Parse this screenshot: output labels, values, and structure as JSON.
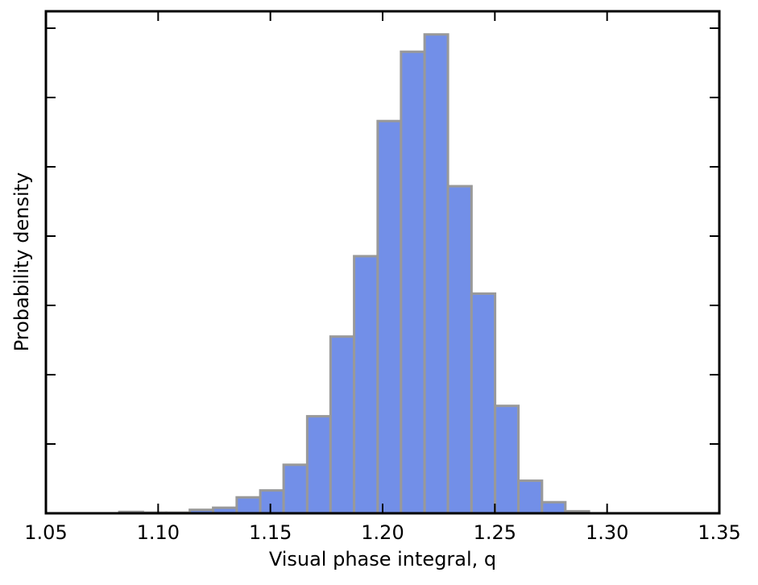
{
  "chart_data": {
    "type": "histogram",
    "xlabel": "Visual phase integral, q",
    "ylabel": "Probability density",
    "bins": [
      1.0827,
      1.0932,
      1.1036,
      1.1141,
      1.1245,
      1.135,
      1.1455,
      1.1559,
      1.1664,
      1.1768,
      1.1873,
      1.1978,
      1.2082,
      1.2187,
      1.2291,
      1.2396,
      1.2501,
      1.2605,
      1.271,
      1.2814,
      1.2919
    ],
    "values": [
      0.02,
      0.01,
      0.01,
      0.05,
      0.08,
      0.23,
      0.33,
      0.7,
      1.4,
      2.55,
      3.71,
      5.66,
      6.66,
      6.91,
      4.72,
      3.17,
      1.55,
      0.47,
      0.16,
      0.03
    ],
    "color": "#728fe8",
    "edgecolor": "#999999",
    "xlim": [
      1.05,
      1.35
    ],
    "xticks": [
      1.05,
      {
        "value": 1.1,
        "label": "1.10"
      },
      1.15,
      {
        "value": 1.2,
        "label": "1.20"
      },
      1.25,
      {
        "value": 1.3,
        "label": "1.30"
      },
      1.35
    ],
    "ylim": [
      0,
      7.244
    ],
    "yticks": [
      1,
      2,
      3,
      4,
      5,
      6,
      7
    ]
  }
}
